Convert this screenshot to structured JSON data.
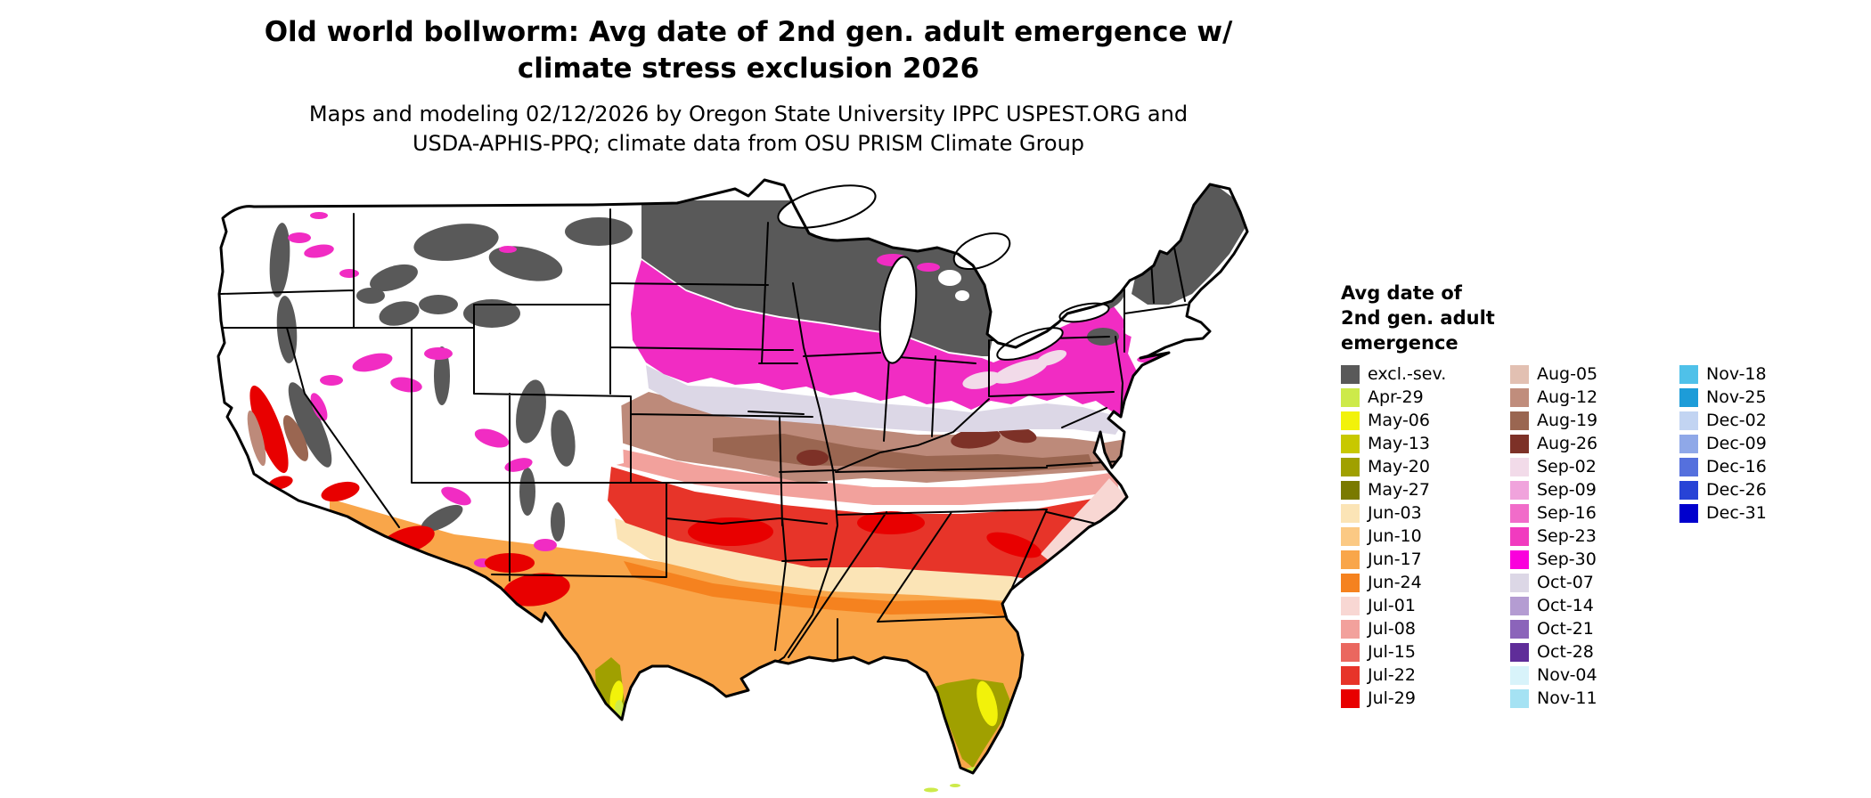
{
  "title": {
    "line1": "Old world bollworm: Avg date of 2nd gen. adult emergence w/",
    "line2": "climate stress exclusion 2026"
  },
  "subtitle": {
    "line1": "Maps and modeling 02/12/2026 by Oregon State University IPPC USPEST.ORG and",
    "line2": "USDA-APHIS-PPQ; climate data from OSU PRISM Climate Group"
  },
  "legend": {
    "title_lines": [
      "Avg date of",
      "2nd gen. adult",
      "emergence"
    ],
    "columns": [
      {
        "entries": [
          {
            "label": "excl.-sev.",
            "color": "#595959"
          },
          {
            "label": "Apr-29",
            "color": "#cdea4a"
          },
          {
            "label": "May-06",
            "color": "#f2f20a"
          },
          {
            "label": "May-13",
            "color": "#c8c800"
          },
          {
            "label": "May-20",
            "color": "#a0a000"
          },
          {
            "label": "May-27",
            "color": "#7a7a00"
          },
          {
            "label": "Jun-03",
            "color": "#fbe4b6"
          },
          {
            "label": "Jun-10",
            "color": "#fbc984"
          },
          {
            "label": "Jun-17",
            "color": "#f9a64a"
          },
          {
            "label": "Jun-24",
            "color": "#f5821f"
          },
          {
            "label": "Jul-01",
            "color": "#f8d7d3"
          },
          {
            "label": "Jul-08",
            "color": "#f2a19c"
          },
          {
            "label": "Jul-15",
            "color": "#ea675f"
          },
          {
            "label": "Jul-22",
            "color": "#e73429"
          },
          {
            "label": "Jul-29",
            "color": "#e80000"
          }
        ]
      },
      {
        "entries": [
          {
            "label": "Aug-05",
            "color": "#e2c0b2"
          },
          {
            "label": "Aug-12",
            "color": "#c08d7c"
          },
          {
            "label": "Aug-19",
            "color": "#9a6651"
          },
          {
            "label": "Aug-26",
            "color": "#7d3127"
          },
          {
            "label": "Sep-02",
            "color": "#f2dbe9"
          },
          {
            "label": "Sep-09",
            "color": "#f0a3dc"
          },
          {
            "label": "Sep-16",
            "color": "#f16cc9"
          },
          {
            "label": "Sep-23",
            "color": "#f13bbf"
          },
          {
            "label": "Sep-30",
            "color": "#fa00dc"
          },
          {
            "label": "Oct-07",
            "color": "#dcd7e6"
          },
          {
            "label": "Oct-14",
            "color": "#b49cd2"
          },
          {
            "label": "Oct-21",
            "color": "#8b64ba"
          },
          {
            "label": "Oct-28",
            "color": "#5f2d99"
          },
          {
            "label": "Nov-04",
            "color": "#d8f3fa"
          },
          {
            "label": "Nov-11",
            "color": "#a5e2f3"
          }
        ]
      },
      {
        "entries": [
          {
            "label": "Nov-18",
            "color": "#4fc1e9"
          },
          {
            "label": "Nov-25",
            "color": "#1d9cd8"
          },
          {
            "label": "Dec-02",
            "color": "#c2d4f2"
          },
          {
            "label": "Dec-09",
            "color": "#8fa8e8"
          },
          {
            "label": "Dec-16",
            "color": "#5570dd"
          },
          {
            "label": "Dec-26",
            "color": "#2743d6"
          },
          {
            "label": "Dec-31",
            "color": "#0000cd"
          }
        ]
      }
    ]
  }
}
